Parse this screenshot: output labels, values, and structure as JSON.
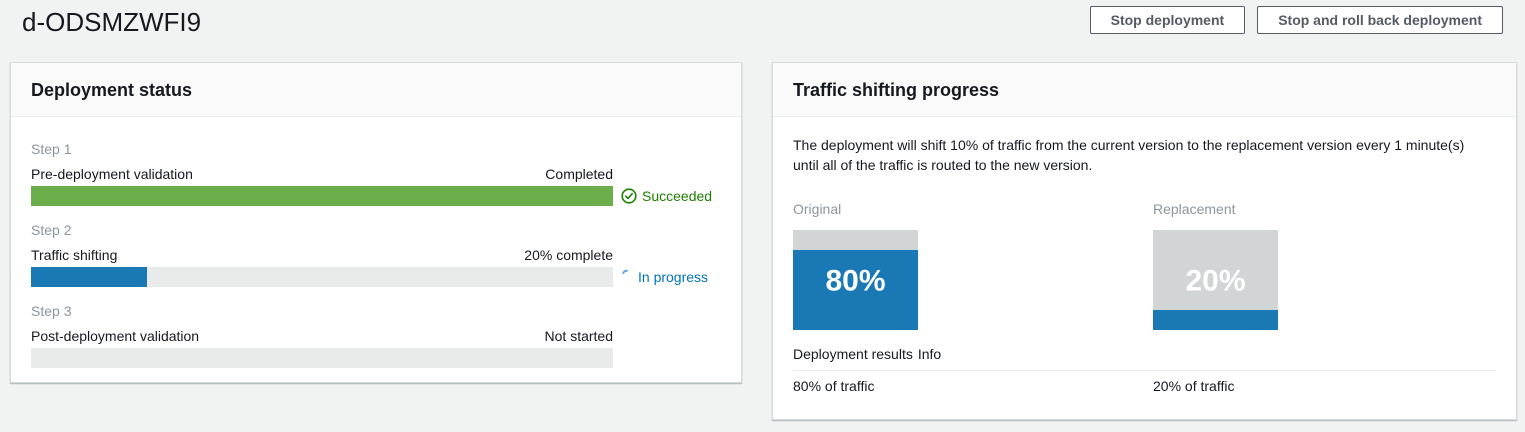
{
  "page": {
    "title": "d-ODSMZWFI9",
    "actions": {
      "stop": "Stop deployment",
      "stop_rollback": "Stop and roll back deployment"
    }
  },
  "deployment_status": {
    "title": "Deployment status",
    "steps": [
      {
        "step_label": "Step 1",
        "name": "Pre-deployment validation",
        "progress_text": "Completed",
        "status_label": "Succeeded",
        "percent": 100
      },
      {
        "step_label": "Step 2",
        "name": "Traffic shifting",
        "progress_text": "20% complete",
        "status_label": "In progress",
        "percent": 20
      },
      {
        "step_label": "Step 3",
        "name": "Post-deployment validation",
        "progress_text": "Not started",
        "status_label": "",
        "percent": 0
      }
    ]
  },
  "traffic_shifting": {
    "title": "Traffic shifting progress",
    "description": "The deployment will shift 10% of traffic from the current version to the replacement version every 1 minute(s) until all of the traffic is routed to the new version.",
    "original": {
      "label": "Original",
      "percent_label": "80%",
      "blue_percent": 80,
      "gray_percent": 20,
      "traffic_label": "80% of traffic"
    },
    "replacement": {
      "label": "Replacement",
      "percent_label": "20%",
      "blue_percent": 20,
      "gray_percent": 80,
      "traffic_label": "20% of traffic"
    },
    "results_label": "Deployment results",
    "info_label": "Info"
  },
  "colors": {
    "success_bar_green": "#6bae4b",
    "progress_blue": "#1a78b5",
    "succeeded_text_green": "#1d8102",
    "in_progress_text_blue": "#0073bb",
    "box_gray": "#d2d5d5",
    "track_gray": "#e9ebeb",
    "page_background": "#f1f2f2"
  }
}
